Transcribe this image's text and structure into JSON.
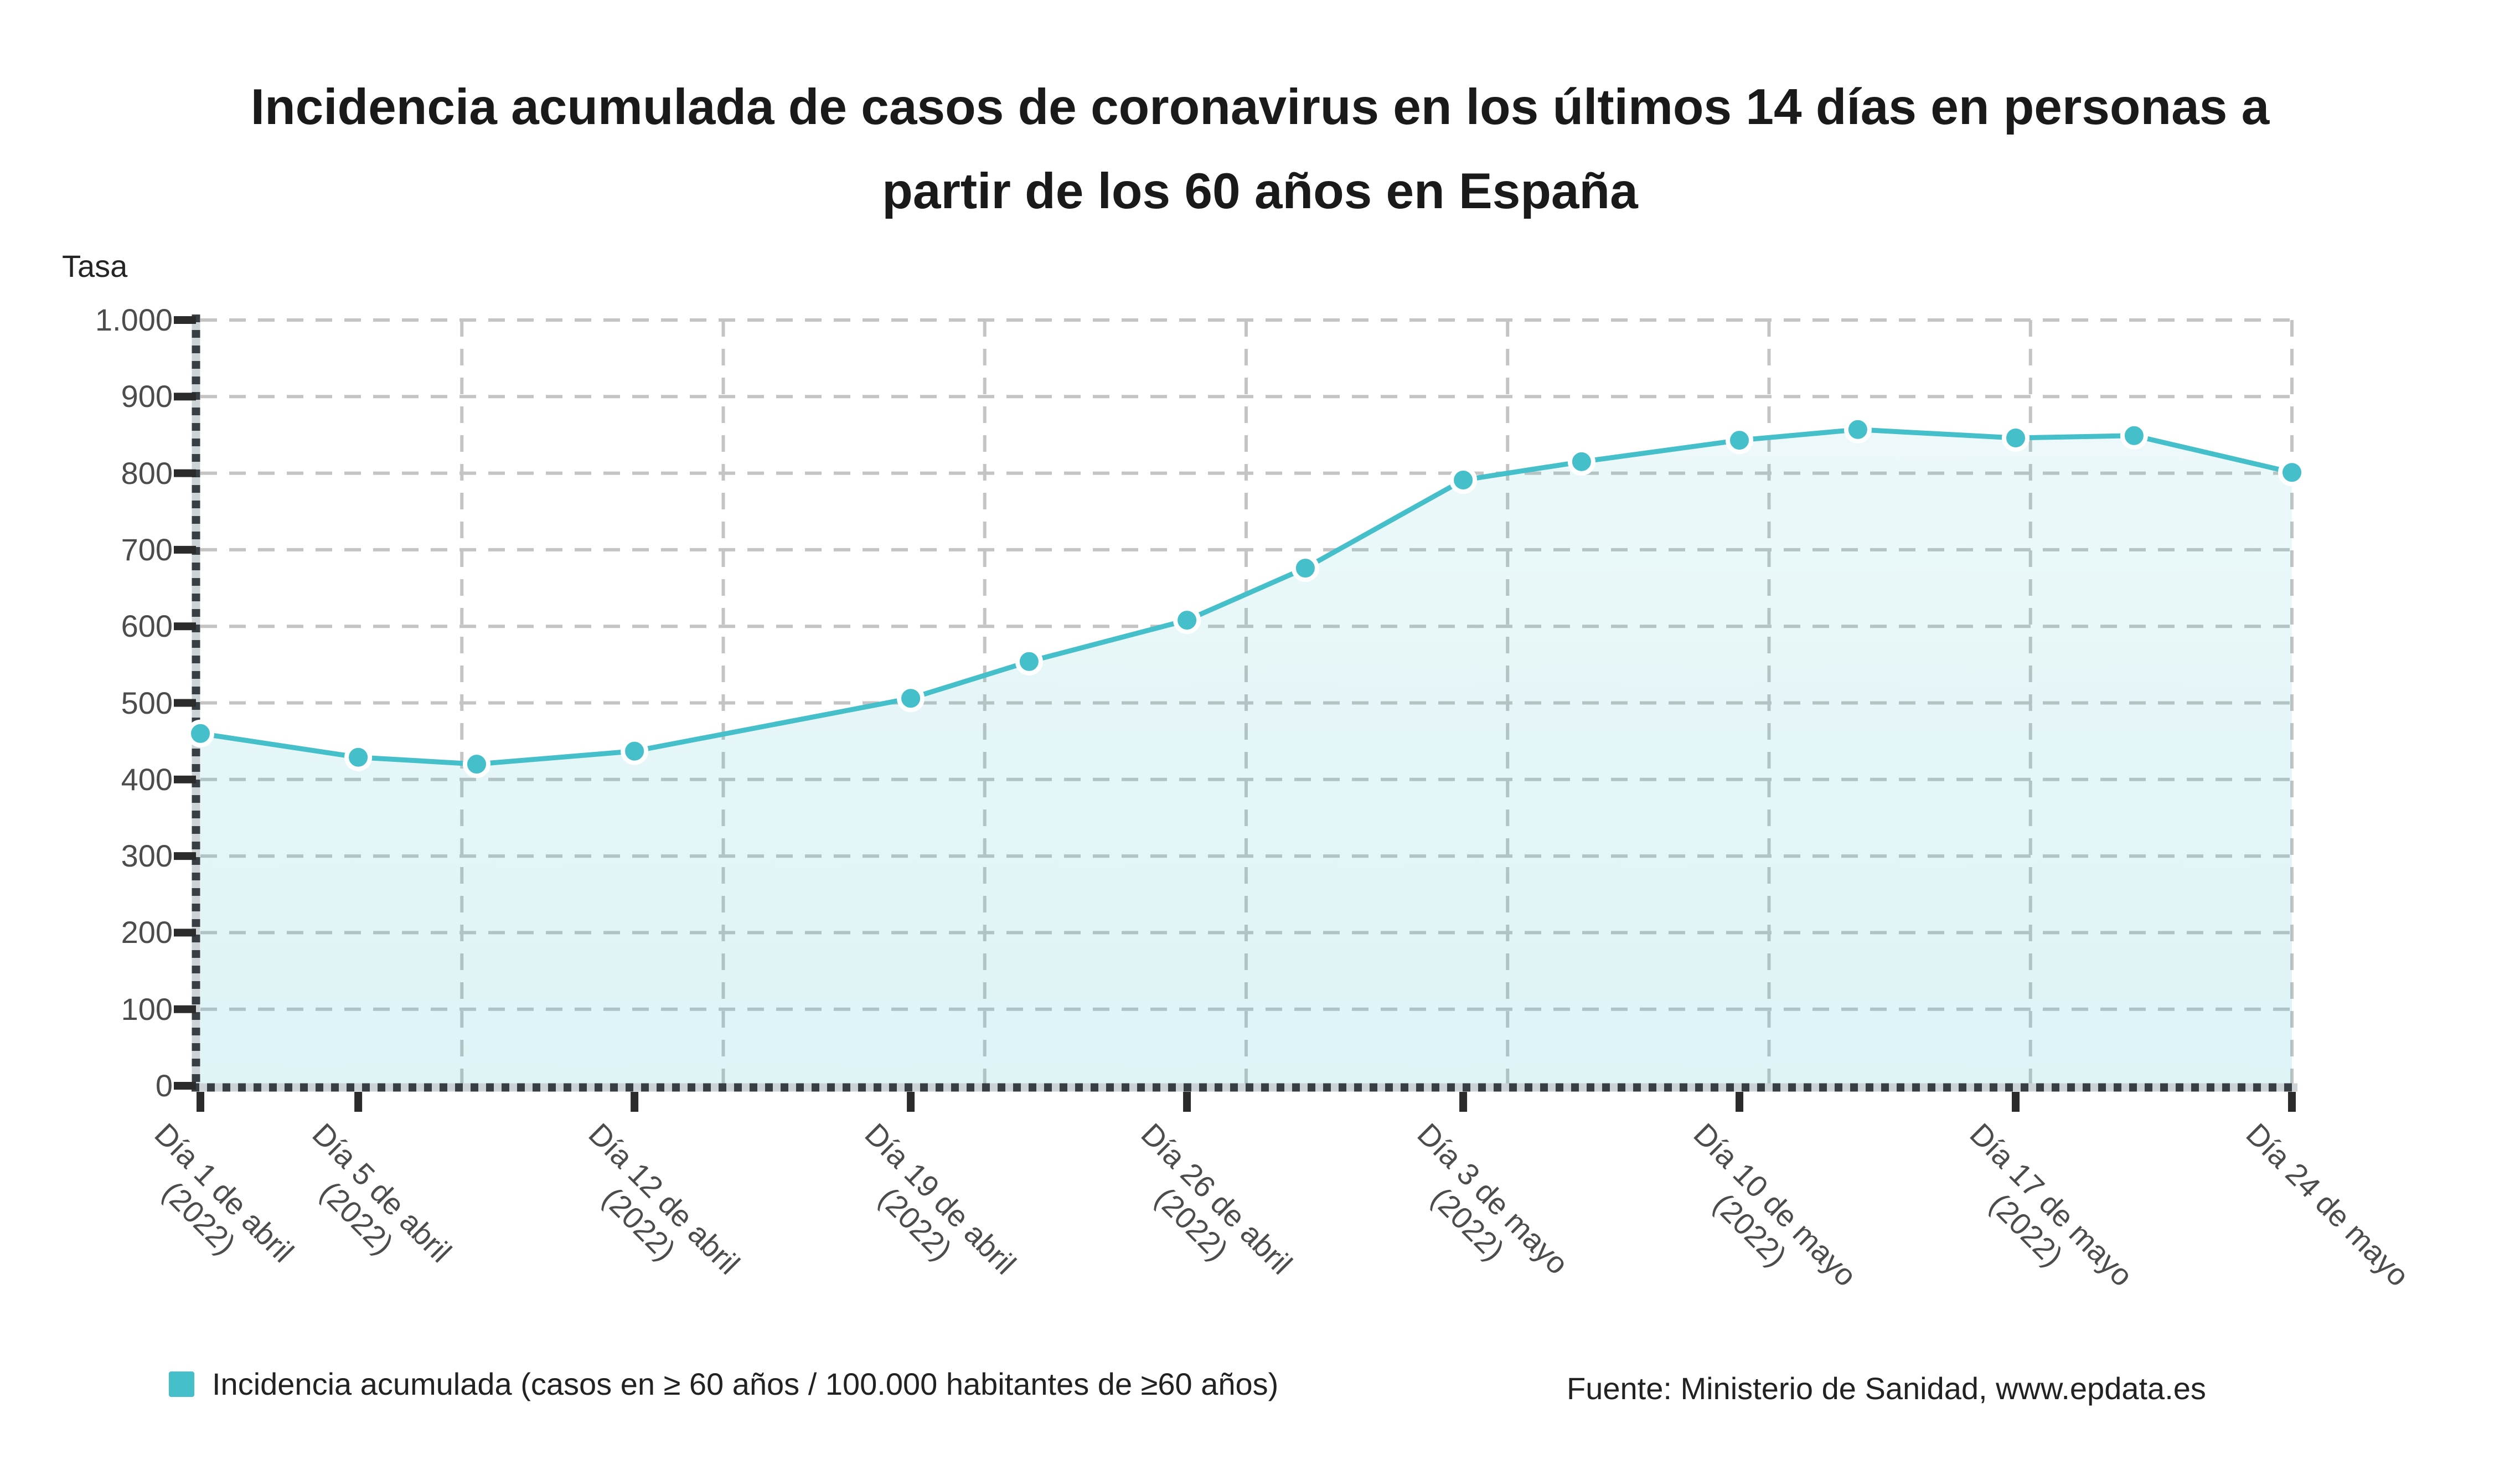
{
  "chart_data": {
    "type": "area",
    "title_lines": [
      "Incidencia acumulada de casos de coronavirus en los últimos 14 días en personas a",
      "partir de los 60 años en España"
    ],
    "y_axis": {
      "title": "Tasa",
      "min": 0,
      "max": 1000,
      "tick_interval": 100,
      "tick_labels_top_to_bottom": [
        "1.000",
        "900",
        "800",
        "700",
        "600",
        "500",
        "400",
        "300",
        "200",
        "100",
        "0"
      ]
    },
    "x_axis": {
      "total_days": 53,
      "vertical_gridlines": 9,
      "ticks": [
        {
          "day": 0,
          "line1": "Día 1 de abril",
          "line2": "(2022)"
        },
        {
          "day": 4,
          "line1": "Día 5 de abril",
          "line2": "(2022)"
        },
        {
          "day": 11,
          "line1": "Día 12 de abril",
          "line2": "(2022)"
        },
        {
          "day": 18,
          "line1": "Día 19 de abril",
          "line2": "(2022)"
        },
        {
          "day": 25,
          "line1": "Día 26 de abril",
          "line2": "(2022)"
        },
        {
          "day": 32,
          "line1": "Día 3 de mayo",
          "line2": "(2022)"
        },
        {
          "day": 39,
          "line1": "Día 10 de mayo",
          "line2": "(2022)"
        },
        {
          "day": 46,
          "line1": "Día 17 de mayo",
          "line2": "(2022)"
        },
        {
          "day": 53,
          "line1": "Día 24 de mayo",
          "line2": ""
        }
      ]
    },
    "series": [
      {
        "name": "Incidencia acumulada (casos en ≥ 60 años / 100.000 habitantes de ≥60 años)",
        "color": "#45bfc9",
        "marker_halo": "#ffffff",
        "area_fill_top": "rgba(69,191,201,0.10)",
        "area_fill_bottom": "rgba(69,191,201,0.18)",
        "points": [
          {
            "date": "1 de abril (2022)",
            "day": 0,
            "value": 460
          },
          {
            "date": "5 de abril (2022)",
            "day": 4,
            "value": 429
          },
          {
            "date": "8 de abril (2022)",
            "day": 7,
            "value": 420
          },
          {
            "date": "12 de abril (2022)",
            "day": 11,
            "value": 437
          },
          {
            "date": "19 de abril (2022)",
            "day": 18,
            "value": 506
          },
          {
            "date": "22 de abril (2022)",
            "day": 21,
            "value": 554
          },
          {
            "date": "26 de abril (2022)",
            "day": 25,
            "value": 608
          },
          {
            "date": "29 de abril (2022)",
            "day": 28,
            "value": 676
          },
          {
            "date": "3 de mayo (2022)",
            "day": 32,
            "value": 791
          },
          {
            "date": "6 de mayo (2022)",
            "day": 35,
            "value": 815
          },
          {
            "date": "10 de mayo (2022)",
            "day": 39,
            "value": 843
          },
          {
            "date": "13 de mayo (2022)",
            "day": 42,
            "value": 857
          },
          {
            "date": "17 de mayo (2022)",
            "day": 46,
            "value": 846
          },
          {
            "date": "20 de mayo (2022)",
            "day": 49,
            "value": 849
          },
          {
            "date": "24 de mayo (2022)",
            "day": 53,
            "value": 801
          }
        ]
      }
    ],
    "legend_position": "bottom",
    "grid": {
      "color": "#c4c4c4",
      "style": "dashed",
      "horizontal_lines": 10
    },
    "source": "Fuente: Ministerio de Sanidad, www.epdata.es"
  },
  "colors": {
    "accent": "#45bfc9",
    "axis_dark": "#373f45",
    "axis_light": "#ccd3d6",
    "tick": "#2b2b2b",
    "axis_label": "#4c4c4c",
    "title": "#1a1a1a",
    "text": "#222222"
  }
}
